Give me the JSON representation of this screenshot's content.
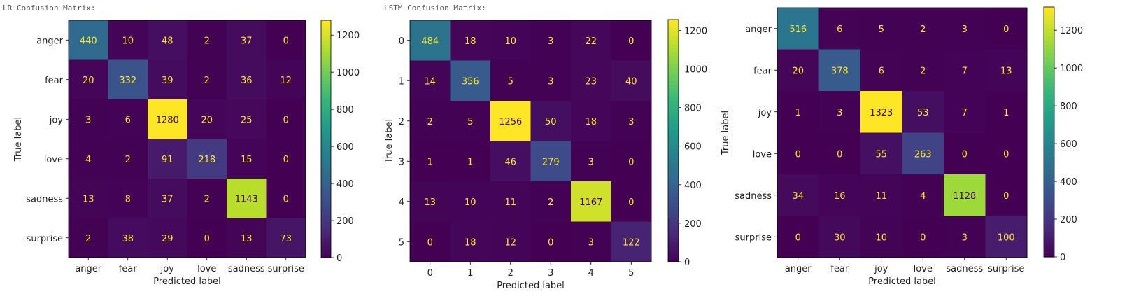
{
  "chart_data": [
    {
      "type": "heatmap",
      "title": "LR Confusion Matrix:",
      "xlabel": "Predicted label",
      "ylabel": "True label",
      "x_categories": [
        "anger",
        "fear",
        "joy",
        "love",
        "sadness",
        "surprise"
      ],
      "y_categories": [
        "anger",
        "fear",
        "joy",
        "love",
        "sadness",
        "surprise"
      ],
      "values": [
        [
          440,
          10,
          48,
          2,
          37,
          0
        ],
        [
          20,
          332,
          39,
          2,
          36,
          12
        ],
        [
          3,
          6,
          1280,
          20,
          25,
          0
        ],
        [
          4,
          2,
          91,
          218,
          15,
          0
        ],
        [
          13,
          8,
          37,
          2,
          1143,
          0
        ],
        [
          2,
          38,
          29,
          0,
          13,
          73
        ]
      ],
      "colorbar": {
        "min": 0,
        "max": 1280,
        "ticks": [
          0,
          200,
          400,
          600,
          800,
          1000,
          1200
        ],
        "colormap": "viridis"
      }
    },
    {
      "type": "heatmap",
      "title": "LSTM Confusion Matrix:",
      "xlabel": "Predicted label",
      "ylabel": "True label",
      "x_categories": [
        "0",
        "1",
        "2",
        "3",
        "4",
        "5"
      ],
      "y_categories": [
        "0",
        "1",
        "2",
        "3",
        "4",
        "5"
      ],
      "values": [
        [
          484,
          18,
          10,
          3,
          22,
          0
        ],
        [
          14,
          356,
          5,
          3,
          23,
          40
        ],
        [
          2,
          5,
          1256,
          50,
          18,
          3
        ],
        [
          1,
          1,
          46,
          279,
          3,
          0
        ],
        [
          13,
          10,
          11,
          2,
          1167,
          0
        ],
        [
          0,
          18,
          12,
          0,
          3,
          122
        ]
      ],
      "colorbar": {
        "min": 0,
        "max": 1256,
        "ticks": [
          0,
          200,
          400,
          600,
          800,
          1000,
          1200
        ],
        "colormap": "viridis"
      }
    },
    {
      "type": "heatmap",
      "title": "",
      "xlabel": "Predicted label",
      "ylabel": "True label",
      "x_categories": [
        "anger",
        "fear",
        "joy",
        "love",
        "sadness",
        "surprise"
      ],
      "y_categories": [
        "anger",
        "fear",
        "joy",
        "love",
        "sadness",
        "surprise"
      ],
      "values": [
        [
          516,
          6,
          5,
          2,
          3,
          0
        ],
        [
          20,
          378,
          6,
          2,
          7,
          13
        ],
        [
          1,
          3,
          1323,
          53,
          7,
          1
        ],
        [
          0,
          0,
          55,
          263,
          0,
          0
        ],
        [
          34,
          16,
          11,
          4,
          1128,
          0
        ],
        [
          0,
          30,
          10,
          0,
          3,
          100
        ]
      ],
      "colorbar": {
        "min": 0,
        "max": 1323,
        "ticks": [
          0,
          200,
          400,
          600,
          800,
          1000,
          1200
        ],
        "colormap": "viridis"
      }
    }
  ]
}
